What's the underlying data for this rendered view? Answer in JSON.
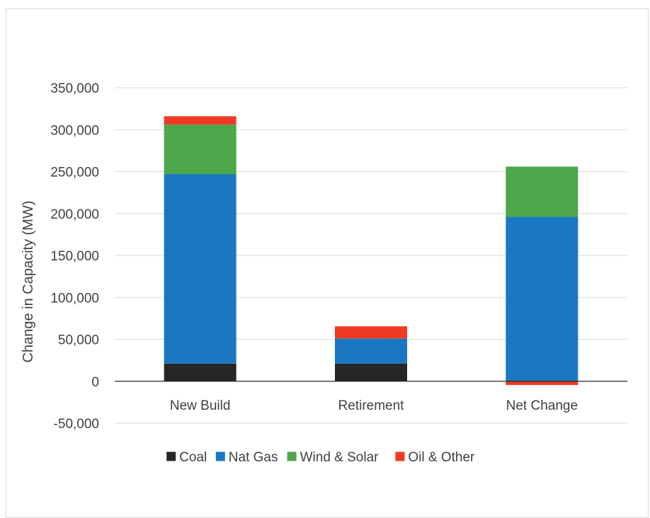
{
  "chart_data": {
    "type": "bar",
    "stacked": true,
    "title": "",
    "xlabel": "",
    "ylabel": "Change in Capacity (MW)",
    "ylim": [
      -50000,
      350000
    ],
    "yticks": [
      350000,
      300000,
      250000,
      200000,
      150000,
      100000,
      50000,
      0,
      -50000
    ],
    "ytick_labels": [
      "350,000",
      "300,000",
      "250,000",
      "200,000",
      "150,000",
      "100,000",
      "50,000",
      "0",
      "-50,000"
    ],
    "grid": true,
    "legend_position": "bottom",
    "categories": [
      "New Build",
      "Retirement",
      "Net Change"
    ],
    "series": [
      {
        "name": "Coal",
        "color": "#262626",
        "values": [
          21000,
          21000,
          0
        ]
      },
      {
        "name": "Nat Gas",
        "color": "#1a78c2",
        "values": [
          226000,
          30000,
          196000
        ]
      },
      {
        "name": "Wind & Solar",
        "color": "#4ca84a",
        "values": [
          59000,
          0,
          60000
        ]
      },
      {
        "name": "Oil & Other",
        "color": "#ef3b24",
        "values": [
          10000,
          14500,
          -4500
        ]
      }
    ]
  }
}
